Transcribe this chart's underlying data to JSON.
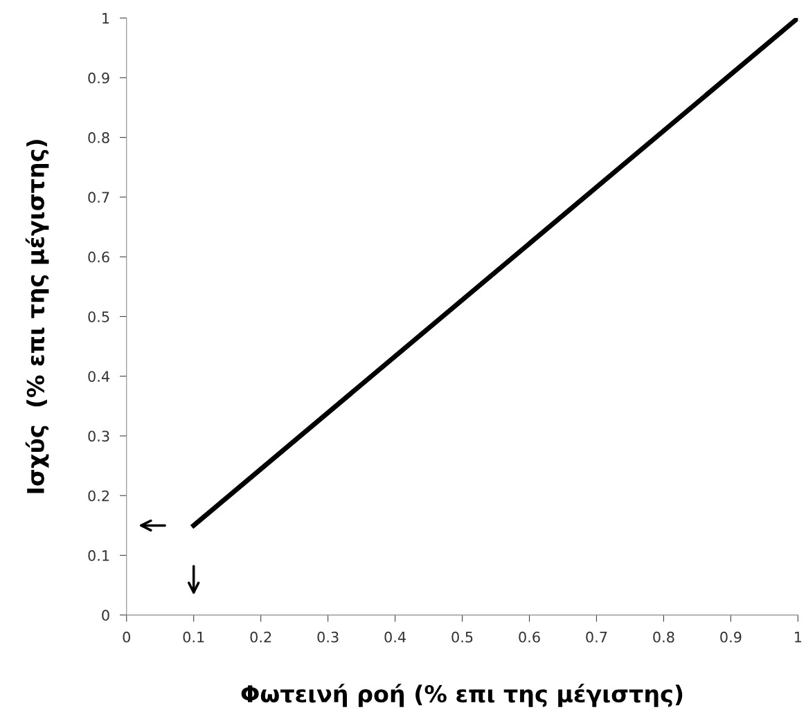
{
  "chart_data": {
    "type": "line",
    "xlabel": "Φωτεινή ροή (% επι της μέγιστης)",
    "ylabel": "Ισχύς  (% επι της μέγιστης)",
    "x": [
      0.1,
      1
    ],
    "series": [
      {
        "color": "#000000",
        "values": [
          0.15,
          1
        ]
      }
    ],
    "xlim": [
      0,
      1
    ],
    "ylim": [
      0,
      1
    ],
    "xticks": [
      0,
      0.1,
      0.2,
      0.3,
      0.4,
      0.5,
      0.6,
      0.7,
      0.8,
      0.9,
      1
    ],
    "yticks": [
      0,
      0.1,
      0.2,
      0.3,
      0.4,
      0.5,
      0.6,
      0.7,
      0.8,
      0.9,
      1
    ],
    "grid": false,
    "legend": false,
    "marker": "none",
    "line_style": "solid"
  }
}
